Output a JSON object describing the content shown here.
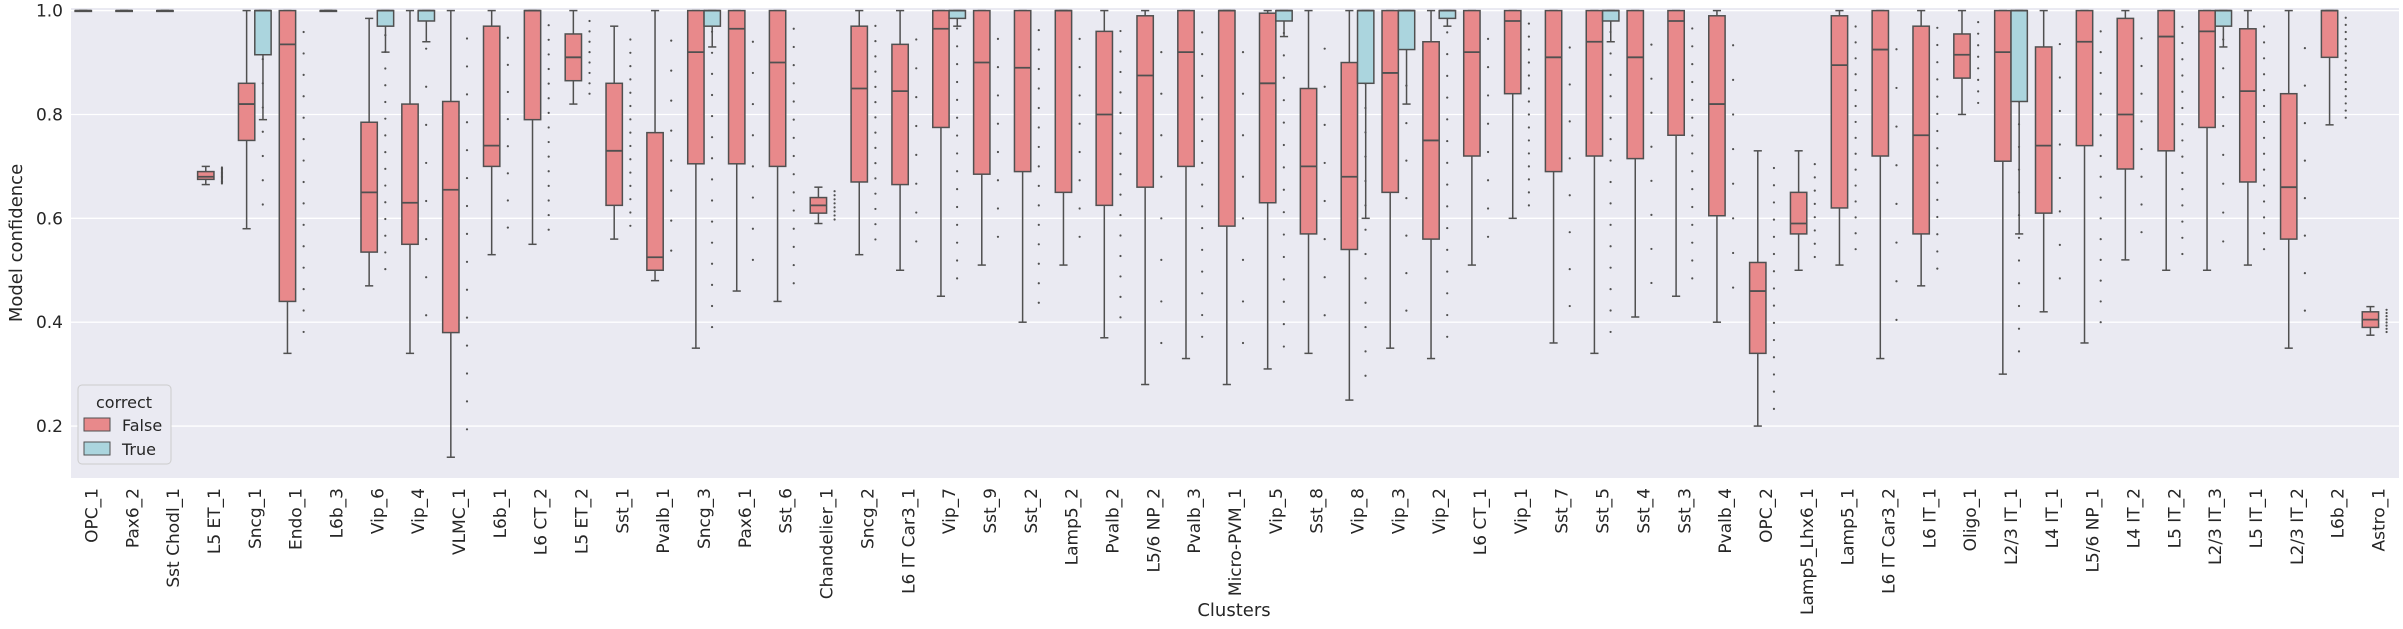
{
  "chart_data": {
    "type": "box",
    "xlabel": "Clusters",
    "ylabel": "Model confidence",
    "ylim": [
      0.1,
      1.005
    ],
    "yticks": [
      "0.2",
      "0.4",
      "0.6",
      "0.8",
      "1.0"
    ],
    "grid": true,
    "legend": {
      "title": "correct",
      "placement": "lower-left",
      "entries": [
        "False",
        "True"
      ]
    },
    "colors": {
      "False": "#e8898b",
      "True": "#abd5de",
      "background": "#eaeaf2",
      "median": "#505050"
    },
    "categories": [
      "OPC_1",
      "Pax6_2",
      "Sst Chodl_1",
      "L5 ET_1",
      "Sncg_1",
      "Endo_1",
      "L6b_3",
      "Vip_6",
      "Vip_4",
      "VLMC_1",
      "L6b_1",
      "L6 CT_2",
      "L5 ET_2",
      "Sst_1",
      "Pvalb_1",
      "Sncg_3",
      "Pax6_1",
      "Sst_6",
      "Chandelier_1",
      "Sncg_2",
      "L6 IT Car3_1",
      "Vip_7",
      "Sst_9",
      "Sst_2",
      "Lamp5_2",
      "Pvalb_2",
      "L5/6 NP_2",
      "Pvalb_3",
      "Micro-PVM_1",
      "Vip_5",
      "Sst_8",
      "Vip_8",
      "Vip_3",
      "Vip_2",
      "L6 CT_1",
      "Vip_1",
      "Sst_7",
      "Sst_5",
      "Sst_4",
      "Sst_3",
      "Pvalb_4",
      "OPC_2",
      "Lamp5_Lhx6_1",
      "Lamp5_1",
      "L6 IT Car3_2",
      "L6 IT_1",
      "Oligo_1",
      "L2/3 IT_1",
      "L4 IT_1",
      "L5/6 NP_1",
      "L4 IT_2",
      "L5 IT_2",
      "L2/3 IT_3",
      "L5 IT_1",
      "L2/3 IT_2",
      "L6b_2",
      "Astro_1"
    ],
    "series": [
      {
        "name": "False",
        "boxes": [
          {
            "q1": 1.0,
            "med": 1.0,
            "q3": 1.0,
            "wlo": 1.0,
            "whi": 1.0
          },
          {
            "q1": 1.0,
            "med": 1.0,
            "q3": 1.0,
            "wlo": 1.0,
            "whi": 1.0
          },
          {
            "q1": 1.0,
            "med": 1.0,
            "q3": 1.0,
            "wlo": 1.0,
            "whi": 1.0
          },
          {
            "q1": 0.675,
            "med": 0.68,
            "q3": 0.69,
            "wlo": 0.665,
            "whi": 0.7
          },
          {
            "q1": 0.75,
            "med": 0.82,
            "q3": 0.86,
            "wlo": 0.58,
            "whi": 1.0
          },
          {
            "q1": 0.44,
            "med": 0.935,
            "q3": 1.0,
            "wlo": 0.34,
            "whi": 1.0
          },
          {
            "q1": 1.0,
            "med": 1.0,
            "q3": 1.0,
            "wlo": 1.0,
            "whi": 1.0
          },
          {
            "q1": 0.535,
            "med": 0.65,
            "q3": 0.785,
            "wlo": 0.47,
            "whi": 0.985
          },
          {
            "q1": 0.55,
            "med": 0.63,
            "q3": 0.82,
            "wlo": 0.34,
            "whi": 1.0
          },
          {
            "q1": 0.38,
            "med": 0.655,
            "q3": 0.825,
            "wlo": 0.14,
            "whi": 1.0
          },
          {
            "q1": 0.7,
            "med": 0.74,
            "q3": 0.97,
            "wlo": 0.53,
            "whi": 1.0
          },
          {
            "q1": 0.79,
            "med": 1.0,
            "q3": 1.0,
            "wlo": 0.55,
            "whi": 1.0
          },
          {
            "q1": 0.865,
            "med": 0.91,
            "q3": 0.955,
            "wlo": 0.82,
            "whi": 1.0
          },
          {
            "q1": 0.625,
            "med": 0.73,
            "q3": 0.86,
            "wlo": 0.56,
            "whi": 0.97
          },
          {
            "q1": 0.5,
            "med": 0.525,
            "q3": 0.765,
            "wlo": 0.48,
            "whi": 1.0
          },
          {
            "q1": 0.705,
            "med": 0.92,
            "q3": 1.0,
            "wlo": 0.35,
            "whi": 1.0
          },
          {
            "q1": 0.705,
            "med": 0.965,
            "q3": 1.0,
            "wlo": 0.46,
            "whi": 1.0
          },
          {
            "q1": 0.7,
            "med": 0.9,
            "q3": 1.0,
            "wlo": 0.44,
            "whi": 1.0
          },
          {
            "q1": 0.61,
            "med": 0.625,
            "q3": 0.64,
            "wlo": 0.59,
            "whi": 0.66
          },
          {
            "q1": 0.67,
            "med": 0.85,
            "q3": 0.97,
            "wlo": 0.53,
            "whi": 1.0
          },
          {
            "q1": 0.665,
            "med": 0.845,
            "q3": 0.935,
            "wlo": 0.5,
            "whi": 1.0
          },
          {
            "q1": 0.775,
            "med": 0.965,
            "q3": 1.0,
            "wlo": 0.45,
            "whi": 1.0
          },
          {
            "q1": 0.685,
            "med": 0.9,
            "q3": 1.0,
            "wlo": 0.51,
            "whi": 1.0
          },
          {
            "q1": 0.69,
            "med": 0.89,
            "q3": 1.0,
            "wlo": 0.4,
            "whi": 1.0
          },
          {
            "q1": 0.65,
            "med": 1.0,
            "q3": 1.0,
            "wlo": 0.51,
            "whi": 1.0
          },
          {
            "q1": 0.625,
            "med": 0.8,
            "q3": 0.96,
            "wlo": 0.37,
            "whi": 1.0
          },
          {
            "q1": 0.66,
            "med": 0.875,
            "q3": 0.99,
            "wlo": 0.28,
            "whi": 1.0
          },
          {
            "q1": 0.7,
            "med": 0.92,
            "q3": 1.0,
            "wlo": 0.33,
            "whi": 1.0
          },
          {
            "q1": 0.585,
            "med": 1.0,
            "q3": 1.0,
            "wlo": 0.28,
            "whi": 1.0
          },
          {
            "q1": 0.63,
            "med": 0.86,
            "q3": 0.995,
            "wlo": 0.31,
            "whi": 1.0
          },
          {
            "q1": 0.57,
            "med": 0.7,
            "q3": 0.85,
            "wlo": 0.34,
            "whi": 1.0
          },
          {
            "q1": 0.54,
            "med": 0.68,
            "q3": 0.9,
            "wlo": 0.25,
            "whi": 1.0
          },
          {
            "q1": 0.65,
            "med": 0.88,
            "q3": 1.0,
            "wlo": 0.35,
            "whi": 1.0
          },
          {
            "q1": 0.56,
            "med": 0.75,
            "q3": 0.94,
            "wlo": 0.33,
            "whi": 1.0
          },
          {
            "q1": 0.72,
            "med": 0.92,
            "q3": 1.0,
            "wlo": 0.51,
            "whi": 1.0
          },
          {
            "q1": 0.84,
            "med": 0.98,
            "q3": 1.0,
            "wlo": 0.6,
            "whi": 1.0
          },
          {
            "q1": 0.69,
            "med": 0.91,
            "q3": 1.0,
            "wlo": 0.36,
            "whi": 1.0
          },
          {
            "q1": 0.72,
            "med": 0.94,
            "q3": 1.0,
            "wlo": 0.34,
            "whi": 1.0
          },
          {
            "q1": 0.715,
            "med": 0.91,
            "q3": 1.0,
            "wlo": 0.41,
            "whi": 1.0
          },
          {
            "q1": 0.76,
            "med": 0.98,
            "q3": 1.0,
            "wlo": 0.45,
            "whi": 1.0
          },
          {
            "q1": 0.605,
            "med": 0.82,
            "q3": 0.99,
            "wlo": 0.4,
            "whi": 1.0
          },
          {
            "q1": 0.34,
            "med": 0.46,
            "q3": 0.515,
            "wlo": 0.2,
            "whi": 0.73
          },
          {
            "q1": 0.57,
            "med": 0.59,
            "q3": 0.65,
            "wlo": 0.5,
            "whi": 0.73
          },
          {
            "q1": 0.62,
            "med": 0.895,
            "q3": 0.99,
            "wlo": 0.51,
            "whi": 1.0
          },
          {
            "q1": 0.72,
            "med": 0.925,
            "q3": 1.0,
            "wlo": 0.33,
            "whi": 1.0
          },
          {
            "q1": 0.57,
            "med": 0.76,
            "q3": 0.97,
            "wlo": 0.47,
            "whi": 1.0
          },
          {
            "q1": 0.87,
            "med": 0.915,
            "q3": 0.955,
            "wlo": 0.8,
            "whi": 1.0
          },
          {
            "q1": 0.71,
            "med": 0.92,
            "q3": 1.0,
            "wlo": 0.3,
            "whi": 1.0
          },
          {
            "q1": 0.61,
            "med": 0.74,
            "q3": 0.93,
            "wlo": 0.42,
            "whi": 1.0
          },
          {
            "q1": 0.74,
            "med": 0.94,
            "q3": 1.0,
            "wlo": 0.36,
            "whi": 1.0
          },
          {
            "q1": 0.695,
            "med": 0.8,
            "q3": 0.985,
            "wlo": 0.52,
            "whi": 1.0
          },
          {
            "q1": 0.73,
            "med": 0.95,
            "q3": 1.0,
            "wlo": 0.5,
            "whi": 1.0
          },
          {
            "q1": 0.775,
            "med": 0.96,
            "q3": 1.0,
            "wlo": 0.5,
            "whi": 1.0
          },
          {
            "q1": 0.67,
            "med": 0.845,
            "q3": 0.965,
            "wlo": 0.51,
            "whi": 1.0
          },
          {
            "q1": 0.56,
            "med": 0.66,
            "q3": 0.84,
            "wlo": 0.35,
            "whi": 1.0
          },
          {
            "q1": 0.91,
            "med": 1.0,
            "q3": 1.0,
            "wlo": 0.78,
            "whi": 1.0
          },
          {
            "q1": 0.39,
            "med": 0.405,
            "q3": 0.42,
            "wlo": 0.375,
            "whi": 0.43
          }
        ]
      },
      {
        "name": "True",
        "boxes": [
          null,
          null,
          null,
          null,
          {
            "q1": 0.915,
            "med": 1.0,
            "q3": 1.0,
            "wlo": 0.79,
            "whi": 1.0
          },
          null,
          null,
          {
            "q1": 0.97,
            "med": 1.0,
            "q3": 1.0,
            "wlo": 0.92,
            "whi": 1.0
          },
          {
            "q1": 0.98,
            "med": 1.0,
            "q3": 1.0,
            "wlo": 0.94,
            "whi": 1.0
          },
          null,
          null,
          null,
          null,
          null,
          null,
          {
            "q1": 0.97,
            "med": 1.0,
            "q3": 1.0,
            "wlo": 0.93,
            "whi": 1.0
          },
          null,
          null,
          null,
          null,
          null,
          {
            "q1": 0.985,
            "med": 1.0,
            "q3": 1.0,
            "wlo": 0.97,
            "whi": 1.0
          },
          null,
          null,
          null,
          null,
          null,
          null,
          null,
          {
            "q1": 0.98,
            "med": 1.0,
            "q3": 1.0,
            "wlo": 0.95,
            "whi": 1.0
          },
          null,
          {
            "q1": 0.86,
            "med": 1.0,
            "q3": 1.0,
            "wlo": 0.6,
            "whi": 1.0
          },
          {
            "q1": 0.925,
            "med": 1.0,
            "q3": 1.0,
            "wlo": 0.82,
            "whi": 1.0
          },
          {
            "q1": 0.985,
            "med": 1.0,
            "q3": 1.0,
            "wlo": 0.97,
            "whi": 1.0
          },
          null,
          null,
          null,
          {
            "q1": 0.98,
            "med": 1.0,
            "q3": 1.0,
            "wlo": 0.94,
            "whi": 1.0
          },
          null,
          null,
          null,
          null,
          null,
          null,
          null,
          null,
          null,
          {
            "q1": 0.825,
            "med": 1.0,
            "q3": 1.0,
            "wlo": 0.57,
            "whi": 1.0
          },
          null,
          null,
          null,
          null,
          {
            "q1": 0.97,
            "med": 1.0,
            "q3": 1.0,
            "wlo": 0.93,
            "whi": 1.0
          },
          null,
          null,
          null,
          null
        ]
      }
    ]
  }
}
